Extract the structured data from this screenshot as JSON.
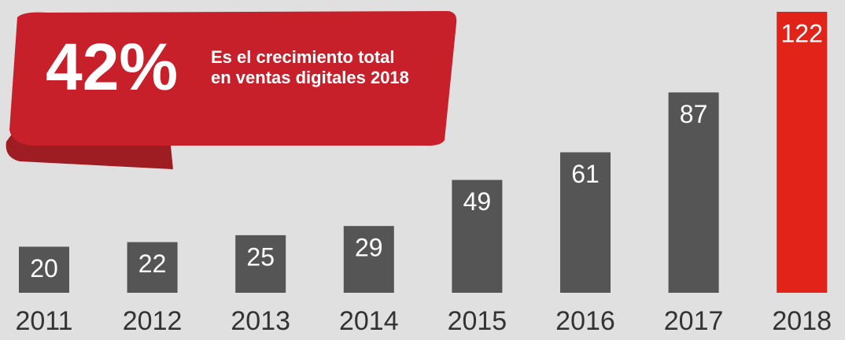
{
  "chart_data": {
    "type": "bar",
    "annotation": {
      "headline": "42%",
      "lines": [
        "Es el crecimiento total",
        "en ventas digitales 2018"
      ]
    },
    "categories": [
      "2011",
      "2012",
      "2013",
      "2014",
      "2015",
      "2016",
      "2017",
      "2018"
    ],
    "values": [
      20,
      22,
      25,
      29,
      49,
      61,
      87,
      122
    ],
    "colors": [
      "#555555",
      "#555555",
      "#555555",
      "#555555",
      "#555555",
      "#555555",
      "#555555",
      "#e2231a"
    ]
  }
}
